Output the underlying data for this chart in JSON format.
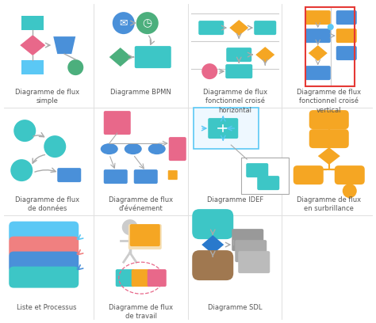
{
  "bg_color": "#ffffff",
  "title_color": "#555555",
  "items": [
    {
      "label": "Diagramme de flux\nsimple",
      "col": 0,
      "row": 0
    },
    {
      "label": "Diagramme BPMN",
      "col": 1,
      "row": 0
    },
    {
      "label": "Diagramme de flux\nfonctionnel croisé\nhorizontal",
      "col": 2,
      "row": 0
    },
    {
      "label": "Diagramme de flux\nfonctionnel croisé\nvertical",
      "col": 3,
      "row": 0
    },
    {
      "label": "Diagramme de flux\nde données",
      "col": 0,
      "row": 1
    },
    {
      "label": "Diagramme de flux\nd'événement",
      "col": 1,
      "row": 1
    },
    {
      "label": "Diagramme IDEF",
      "col": 2,
      "row": 1
    },
    {
      "label": "Diagramme de flux\nen surbrillance",
      "col": 3,
      "row": 1
    },
    {
      "label": "Liste et Processus",
      "col": 0,
      "row": 2
    },
    {
      "label": "Diagramme de flux\nde travail",
      "col": 1,
      "row": 2
    },
    {
      "label": "Diagramme SDL",
      "col": 2,
      "row": 2
    }
  ],
  "colors": {
    "teal": "#3DC6C6",
    "blue": "#4A90D9",
    "pink": "#E8688A",
    "orange": "#F5A623",
    "green": "#4CAF7D",
    "gray": "#9E9E9E",
    "light_blue": "#5BC8F5",
    "dark_blue": "#2979CC",
    "salmon": "#F08080",
    "brown": "#A07850",
    "red": "#E53935",
    "mid_blue": "#5B9BD5"
  }
}
